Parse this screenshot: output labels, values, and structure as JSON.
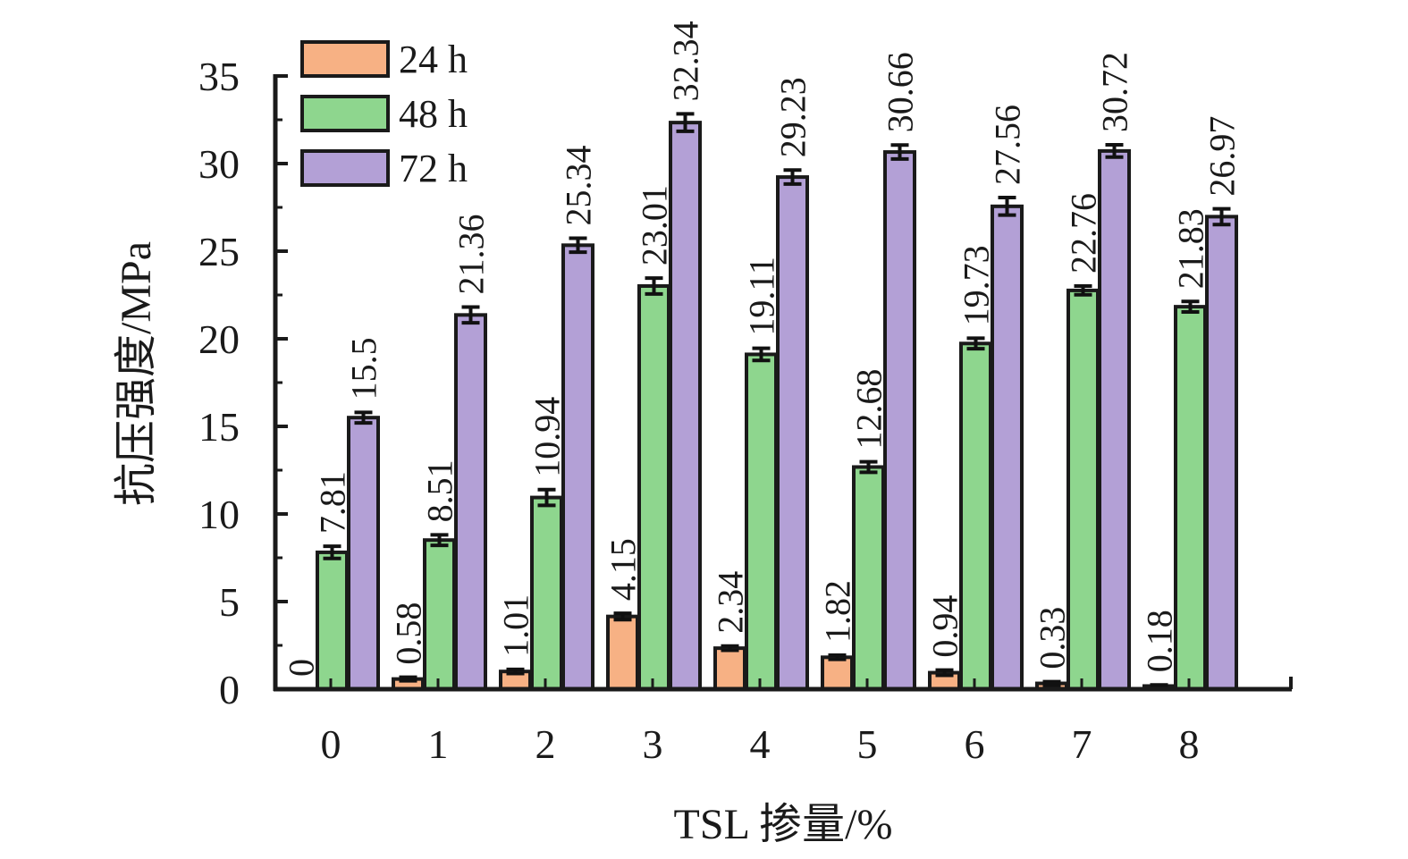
{
  "chart_data": {
    "type": "bar",
    "xlabel": "TSL 掺量/%",
    "ylabel": "抗压强度/MPa",
    "ylim": [
      0,
      35
    ],
    "yticks": [
      "0",
      "5",
      "10",
      "15",
      "20",
      "25",
      "30",
      "35"
    ],
    "categories": [
      "0",
      "1",
      "2",
      "3",
      "4",
      "5",
      "6",
      "7",
      "8"
    ],
    "series": [
      {
        "name": "24 h",
        "color": "#f7b184",
        "values": [
          0,
          0.58,
          1.01,
          4.15,
          2.34,
          1.82,
          0.94,
          0.33,
          0.18
        ],
        "labels": [
          "0",
          "0.58",
          "1.01",
          "4.15",
          "2.34",
          "1.82",
          "0.94",
          "0.33",
          "0.18"
        ],
        "errors": [
          0,
          0.1,
          0.12,
          0.18,
          0.12,
          0.12,
          0.15,
          0.1,
          0.06
        ]
      },
      {
        "name": "48 h",
        "color": "#8ed68e",
        "values": [
          7.81,
          8.51,
          10.94,
          23.01,
          19.11,
          12.68,
          19.73,
          22.76,
          21.83
        ],
        "labels": [
          "7.81",
          "8.51",
          "10.94",
          "23.01",
          "19.11",
          "12.68",
          "19.73",
          "22.76",
          "21.83"
        ],
        "errors": [
          0.35,
          0.3,
          0.45,
          0.45,
          0.35,
          0.3,
          0.3,
          0.25,
          0.3
        ]
      },
      {
        "name": "72 h",
        "color": "#b3a0d6",
        "values": [
          15.5,
          21.36,
          25.34,
          32.34,
          29.23,
          30.66,
          27.56,
          30.72,
          26.97
        ],
        "labels": [
          "15.5",
          "21.36",
          "25.34",
          "32.34",
          "29.23",
          "30.66",
          "27.56",
          "30.72",
          "26.97"
        ],
        "errors": [
          0.3,
          0.45,
          0.4,
          0.5,
          0.4,
          0.4,
          0.5,
          0.35,
          0.45
        ]
      }
    ],
    "legend_position": "top-left",
    "grid": false
  }
}
